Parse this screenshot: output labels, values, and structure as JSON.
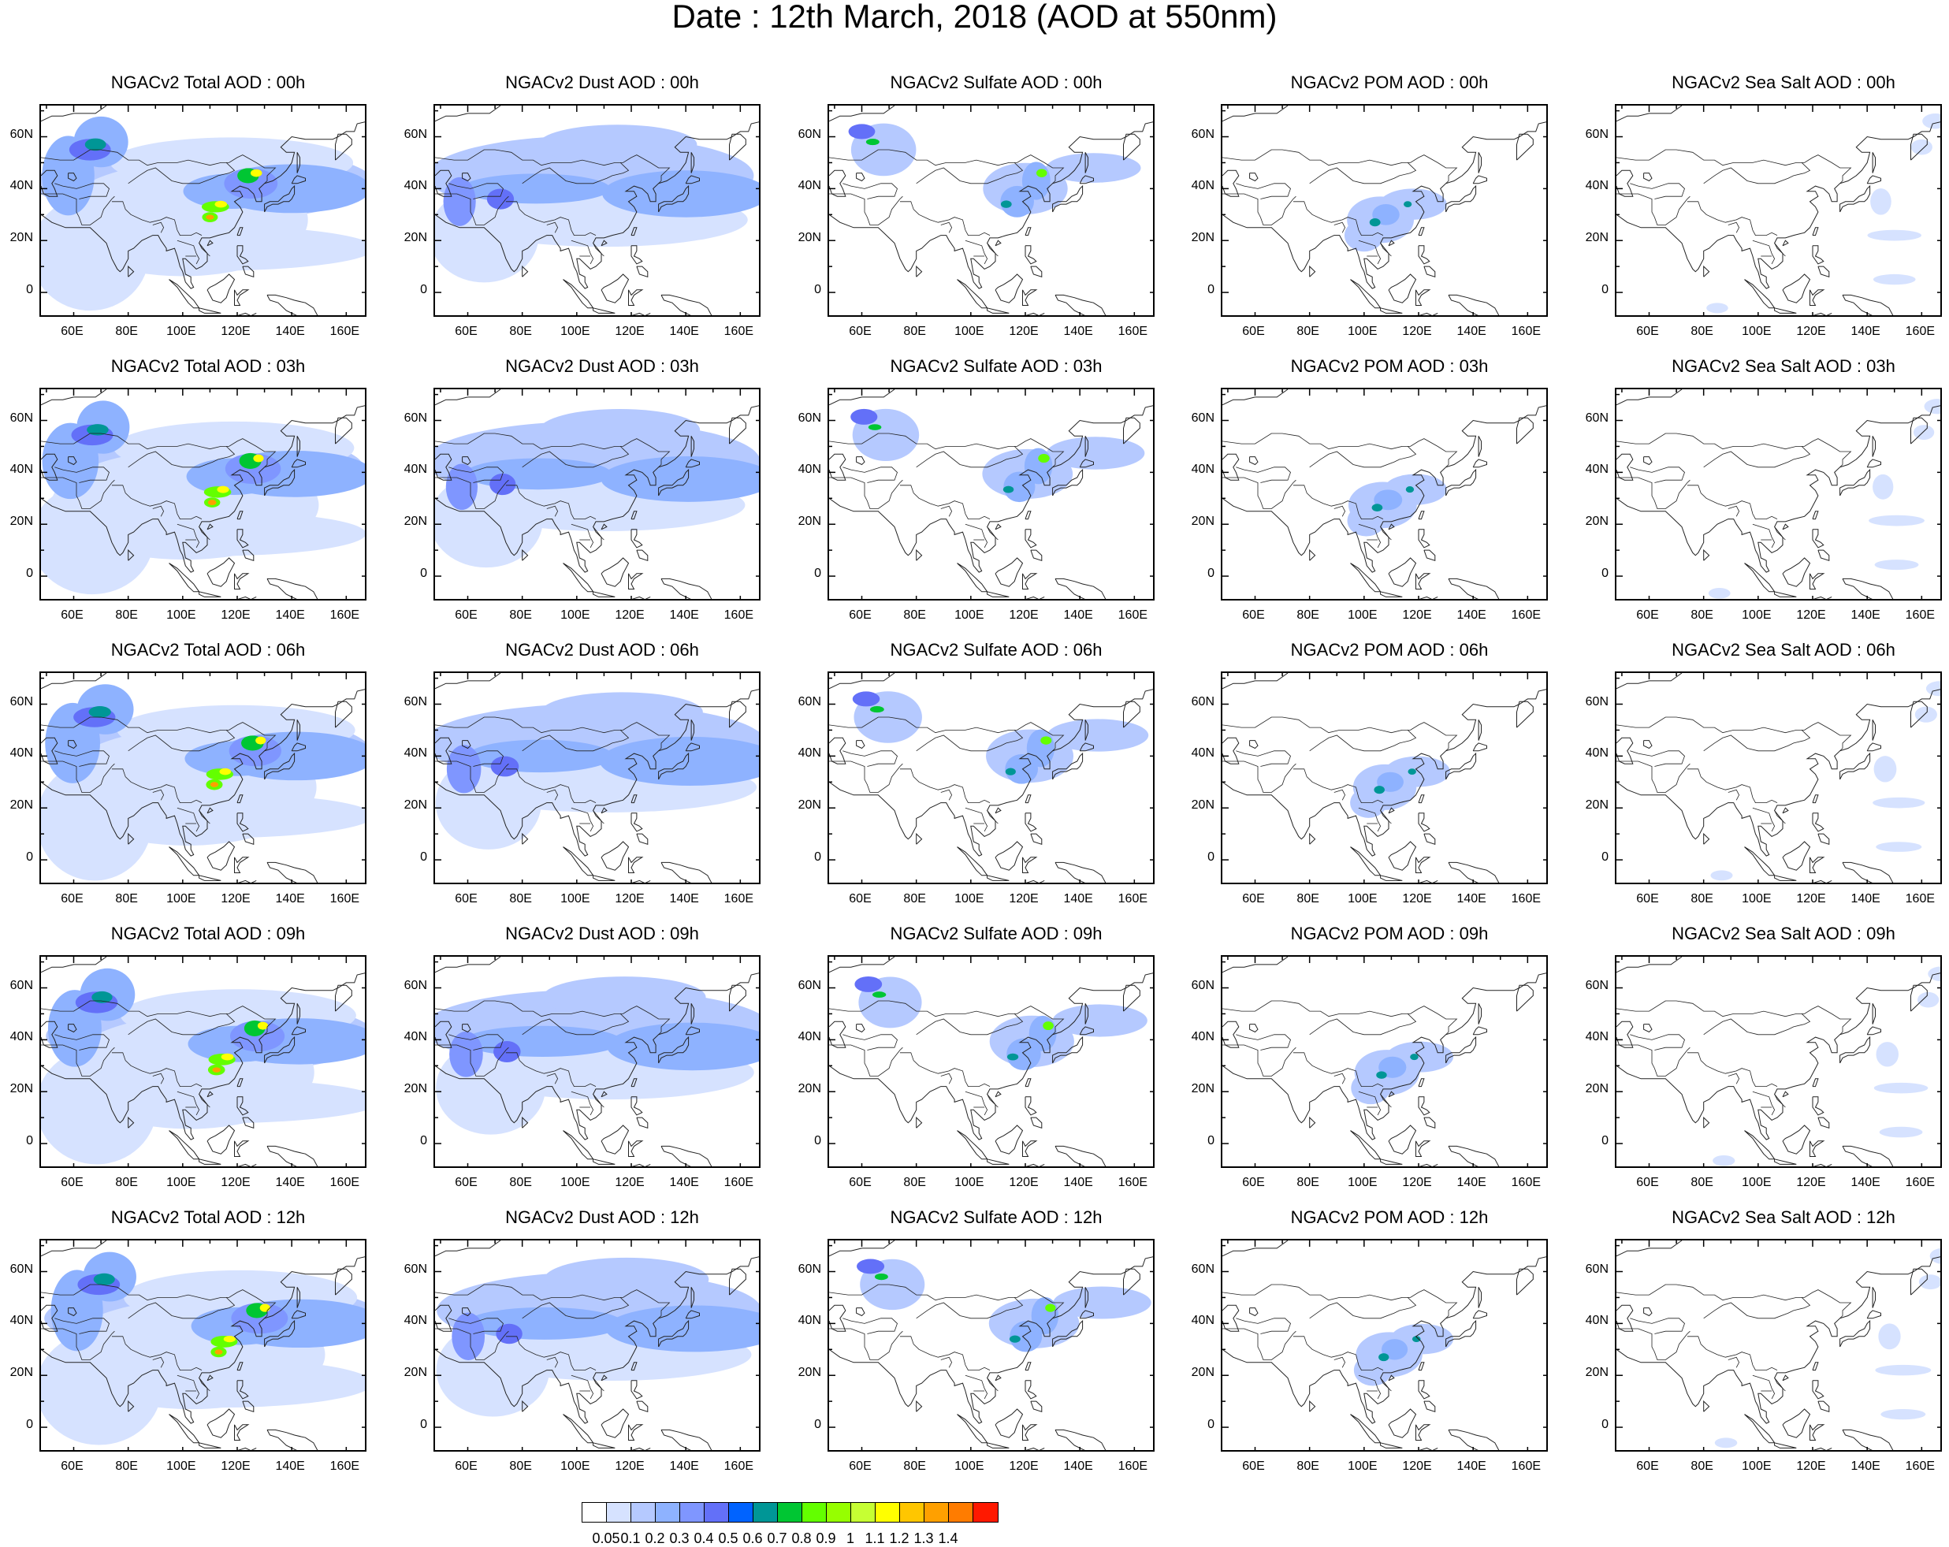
{
  "title": "Date : 12th March, 2018 (AOD at 550nm)",
  "panels": [
    [
      "NGACv2 Total AOD : 00h",
      "NGACv2 Dust AOD : 00h",
      "NGACv2 Sulfate AOD : 00h",
      "NGACv2 POM AOD : 00h",
      "NGACv2 Sea Salt AOD : 00h"
    ],
    [
      "NGACv2 Total AOD : 03h",
      "NGACv2 Dust AOD : 03h",
      "NGACv2 Sulfate AOD : 03h",
      "NGACv2 POM AOD : 03h",
      "NGACv2 Sea Salt AOD : 03h"
    ],
    [
      "NGACv2 Total AOD : 06h",
      "NGACv2 Dust AOD : 06h",
      "NGACv2 Sulfate AOD : 06h",
      "NGACv2 POM AOD : 06h",
      "NGACv2 Sea Salt AOD : 06h"
    ],
    [
      "NGACv2 Total AOD : 09h",
      "NGACv2 Dust AOD : 09h",
      "NGACv2 Sulfate AOD : 09h",
      "NGACv2 POM AOD : 09h",
      "NGACv2 Sea Salt  AOD : 09h"
    ],
    [
      "NGACv2 Total AOD  : 12h",
      "NGACv2 Dust AOD : 12h",
      "NGACv2 Sulfate AOD : 12h",
      "NGACv2 POM  AOD : 12h",
      "NGACv2 Sea Salt  AOD : 12h"
    ]
  ],
  "lat_ticks": [
    "60N",
    "40N",
    "20N",
    "0"
  ],
  "lon_ticks": [
    "60E",
    "80E",
    "100E",
    "120E",
    "140E",
    "160E"
  ],
  "colorbar": {
    "labels": [
      "0.05",
      "0.1",
      "0.2",
      "0.3",
      "0.4",
      "0.5",
      "0.6",
      "0.7",
      "0.8",
      "0.9",
      "1",
      "1.1",
      "1.2",
      "1.3",
      "1.4"
    ],
    "colors": [
      "#ffffff",
      "#d6e2ff",
      "#b5c9ff",
      "#8eb2ff",
      "#7f96ff",
      "#6370f8",
      "#0063ff",
      "#009696",
      "#00c633",
      "#63ff00",
      "#96ff00",
      "#c6ff33",
      "#ffff00",
      "#ffc600",
      "#ffa000",
      "#ff7c00",
      "#ff1900"
    ]
  }
}
